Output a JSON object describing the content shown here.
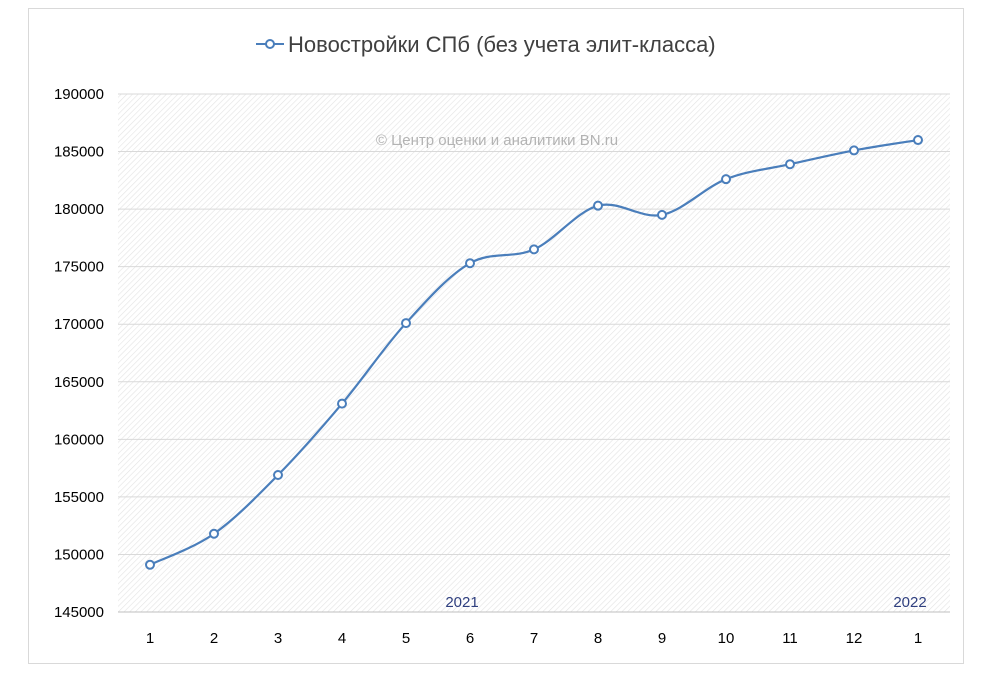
{
  "chart_data": {
    "type": "line",
    "title": "Новостройки СПб (без учета элит-класса)",
    "watermark": "© Центр оценки и аналитики BN.ru",
    "categories": [
      "1",
      "2",
      "3",
      "4",
      "5",
      "6",
      "7",
      "8",
      "9",
      "10",
      "11",
      "12",
      "1"
    ],
    "series": [
      {
        "name": "Новостройки СПб (без учета элит-класса)",
        "color": "#4a7ebb",
        "values": [
          149100,
          151800,
          156900,
          163100,
          170100,
          175300,
          176500,
          180300,
          179500,
          182600,
          183900,
          185100,
          186000
        ]
      }
    ],
    "year_labels": [
      {
        "text": "2021",
        "category_index": 5
      },
      {
        "text": "2022",
        "category_index": 12
      }
    ],
    "ylim": [
      145000,
      190000
    ],
    "yticks": [
      "145000",
      "150000",
      "155000",
      "160000",
      "165000",
      "170000",
      "175000",
      "180000",
      "185000",
      "190000"
    ],
    "xlabel": "",
    "ylabel": "",
    "grid": true,
    "legend_position": "top"
  }
}
